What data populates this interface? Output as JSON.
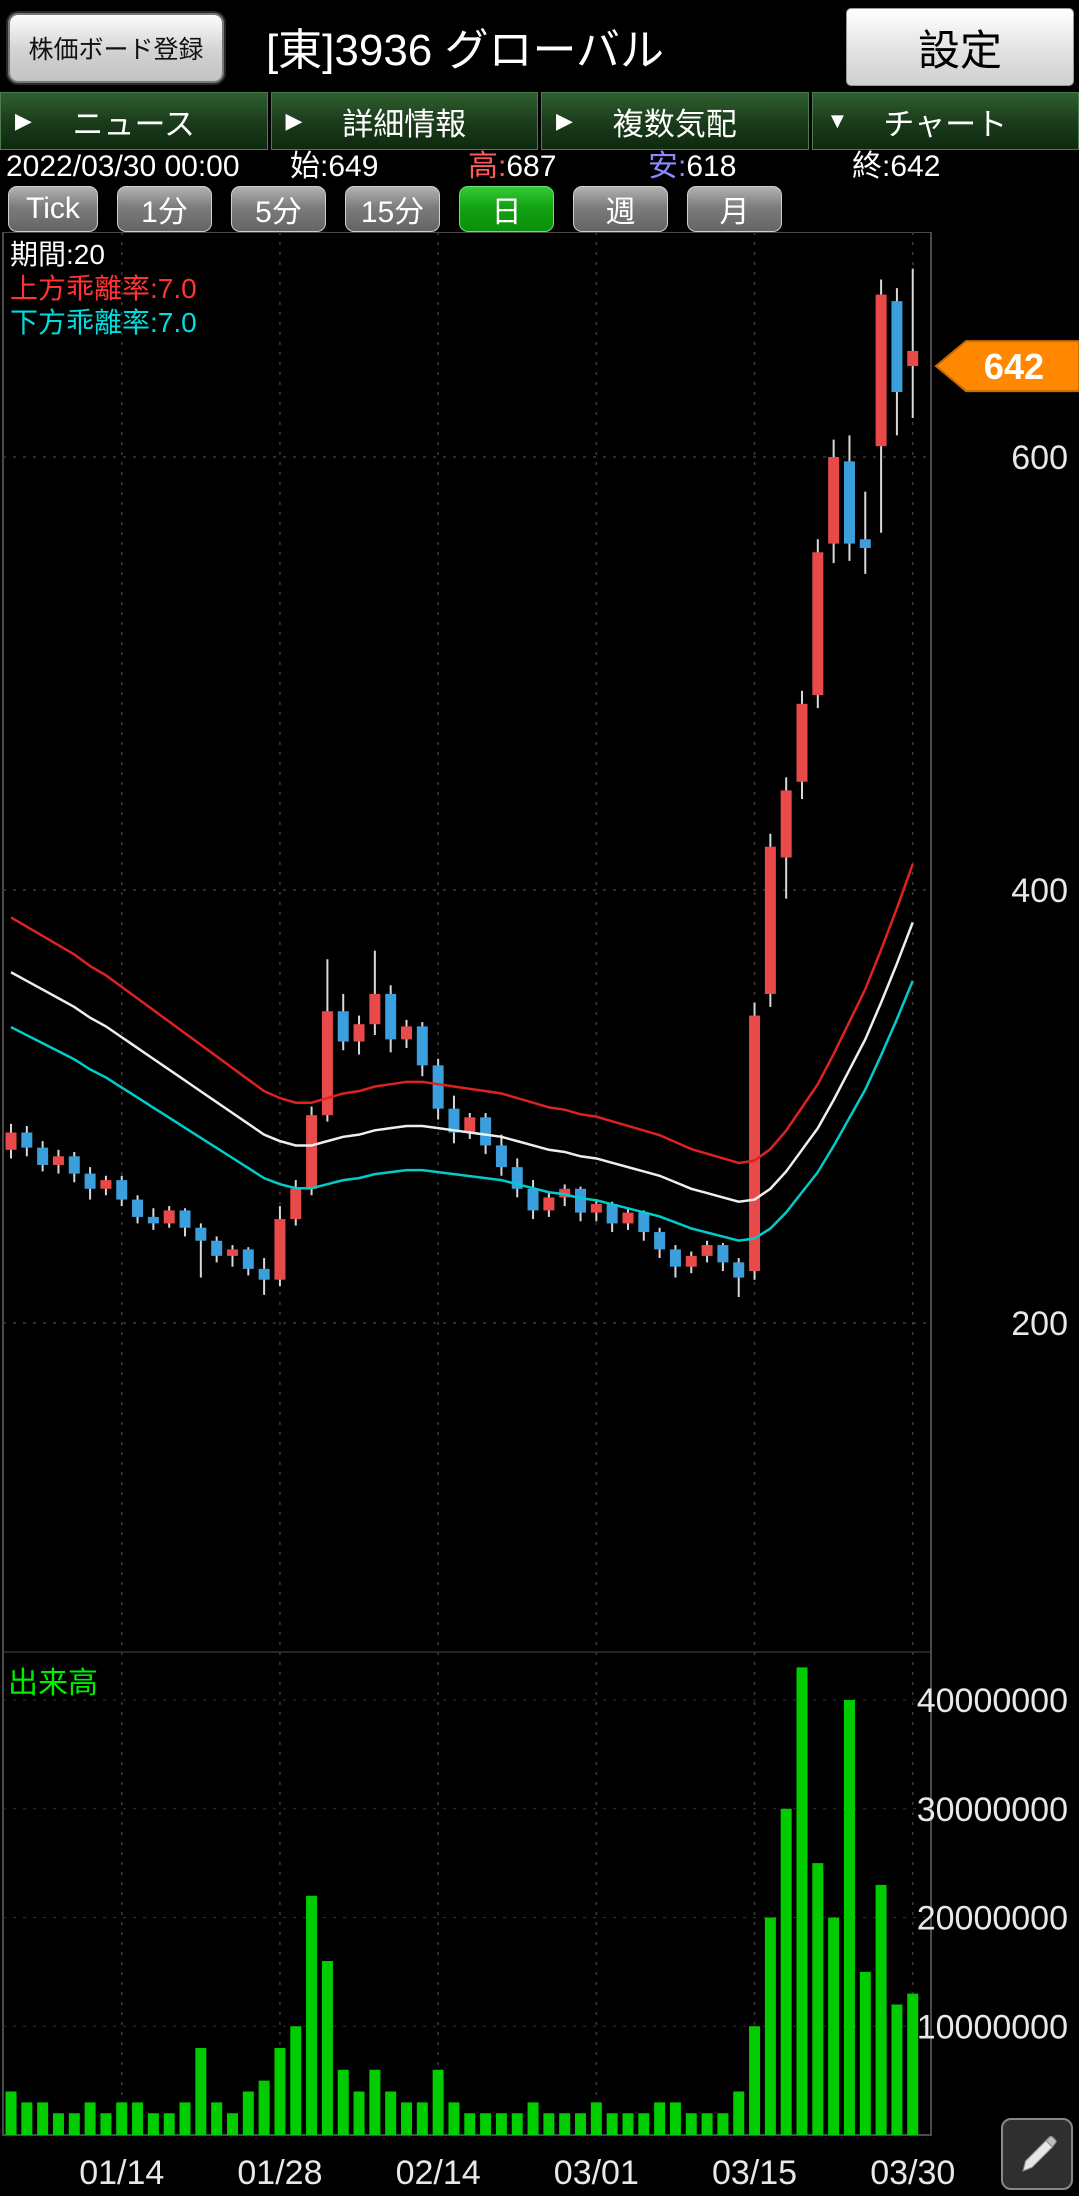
{
  "header": {
    "board_register_label": "株価ボード登録",
    "title": "[東]3936 グローバル",
    "settings_label": "設定"
  },
  "tabs": [
    {
      "label": "ニュース",
      "arrow_glyph": "▶"
    },
    {
      "label": "詳細情報",
      "arrow_glyph": "▶"
    },
    {
      "label": "複数気配",
      "arrow_glyph": "▶"
    },
    {
      "label": "チャート",
      "arrow_glyph": "▼"
    }
  ],
  "quote_bar": {
    "datetime": "2022/03/30 00:00",
    "open_label": "始:",
    "open_value": "649",
    "high_label": "高:",
    "high_value": "687",
    "low_label": "安:",
    "low_value": "618",
    "close_label": "終:",
    "close_value": "642"
  },
  "timeframes": {
    "options": [
      "Tick",
      "1分",
      "5分",
      "15分",
      "日",
      "週",
      "月"
    ],
    "selected": "日"
  },
  "chart_overlays": {
    "period_label": "期間:20",
    "upper_dev_label": "上方乖離率:7.0",
    "lower_dev_label": "下方乖離率:7.0",
    "volume_label": "出来高"
  },
  "colors": {
    "up_candle": "#e84a4a",
    "down_candle": "#3b9fdd",
    "ma_upper": "#dd2222",
    "ma_middle": "#eeeeee",
    "ma_lower": "#00cccc",
    "volume_bar": "#00cc00",
    "current_price_tag": "#ff8800",
    "grid": "#3c3c3c",
    "axis_text": "#e8e8e8"
  },
  "chart_data": {
    "type": "candlestick",
    "symbol": "[東]3936 グローバル",
    "interval": "日",
    "title": "",
    "ma": {
      "period": 20,
      "upper_envelope_pct": 7.0,
      "lower_envelope_pct": 7.0
    },
    "color_rule": "close_vs_prev_close",
    "current_price": 642,
    "price_axis_ticks": [
      600,
      400,
      200
    ],
    "volume_axis_ticks": [
      40000000,
      30000000,
      20000000,
      10000000
    ],
    "x_axis_labels": [
      "01/14",
      "01/28",
      "02/14",
      "03/01",
      "03/15",
      "03/30"
    ],
    "candle_fields": [
      "date",
      "open",
      "high",
      "low",
      "close",
      "volume"
    ],
    "candles": [
      [
        "01/04",
        280,
        292,
        276,
        288,
        4000000
      ],
      [
        "01/05",
        288,
        291,
        277,
        281,
        3000000
      ],
      [
        "01/06",
        281,
        284,
        270,
        273,
        3000000
      ],
      [
        "01/07",
        273,
        280,
        269,
        277,
        2000000
      ],
      [
        "01/11",
        277,
        279,
        265,
        269,
        2000000
      ],
      [
        "01/12",
        269,
        272,
        257,
        262,
        3000000
      ],
      [
        "01/13",
        262,
        268,
        259,
        266,
        2000000
      ],
      [
        "01/14",
        266,
        268,
        254,
        257,
        3000000
      ],
      [
        "01/17",
        257,
        259,
        246,
        249,
        3000000
      ],
      [
        "01/18",
        249,
        253,
        243,
        246,
        2000000
      ],
      [
        "01/19",
        246,
        254,
        244,
        252,
        2000000
      ],
      [
        "01/20",
        252,
        253,
        240,
        244,
        3000000
      ],
      [
        "01/21",
        244,
        246,
        221,
        238,
        8000000
      ],
      [
        "01/24",
        238,
        240,
        228,
        231,
        3000000
      ],
      [
        "01/25",
        231,
        236,
        226,
        234,
        2000000
      ],
      [
        "01/26",
        234,
        235,
        222,
        225,
        4000000
      ],
      [
        "01/27",
        225,
        230,
        213,
        220,
        5000000
      ],
      [
        "01/28",
        220,
        254,
        217,
        248,
        8000000
      ],
      [
        "01/31",
        248,
        266,
        245,
        262,
        10000000
      ],
      [
        "02/01",
        262,
        300,
        259,
        296,
        22000000
      ],
      [
        "02/02",
        296,
        368,
        293,
        344,
        16000000
      ],
      [
        "02/03",
        344,
        352,
        326,
        330,
        6000000
      ],
      [
        "02/04",
        330,
        342,
        324,
        338,
        4000000
      ],
      [
        "02/07",
        338,
        372,
        333,
        352,
        6000000
      ],
      [
        "02/08",
        352,
        356,
        325,
        331,
        4000000
      ],
      [
        "02/09",
        331,
        340,
        327,
        337,
        3000000
      ],
      [
        "02/10",
        337,
        339,
        314,
        319,
        3000000
      ],
      [
        "02/14",
        319,
        322,
        294,
        299,
        6000000
      ],
      [
        "02/15",
        299,
        305,
        283,
        288,
        3000000
      ],
      [
        "02/16",
        288,
        297,
        285,
        295,
        2000000
      ],
      [
        "02/17",
        295,
        297,
        278,
        282,
        2000000
      ],
      [
        "02/18",
        282,
        287,
        268,
        272,
        2000000
      ],
      [
        "02/21",
        272,
        276,
        258,
        262,
        2000000
      ],
      [
        "02/22",
        262,
        266,
        248,
        252,
        3000000
      ],
      [
        "02/24",
        252,
        260,
        249,
        258,
        2000000
      ],
      [
        "02/25",
        258,
        264,
        254,
        262,
        2000000
      ],
      [
        "02/28",
        262,
        263,
        247,
        251,
        2000000
      ],
      [
        "03/01",
        251,
        257,
        247,
        255,
        3000000
      ],
      [
        "03/02",
        255,
        256,
        242,
        246,
        2000000
      ],
      [
        "03/03",
        246,
        253,
        243,
        251,
        2000000
      ],
      [
        "03/04",
        251,
        252,
        238,
        242,
        2000000
      ],
      [
        "03/07",
        242,
        244,
        230,
        234,
        3000000
      ],
      [
        "03/08",
        234,
        236,
        221,
        226,
        3000000
      ],
      [
        "03/09",
        226,
        233,
        223,
        231,
        2000000
      ],
      [
        "03/10",
        231,
        238,
        228,
        236,
        2000000
      ],
      [
        "03/11",
        236,
        237,
        224,
        228,
        2000000
      ],
      [
        "03/14",
        228,
        230,
        212,
        221,
        4000000
      ],
      [
        "03/15",
        224,
        348,
        220,
        342,
        10000000
      ],
      [
        "03/16",
        352,
        426,
        346,
        420,
        20000000
      ],
      [
        "03/17",
        415,
        452,
        396,
        446,
        30000000
      ],
      [
        "03/18",
        450,
        492,
        442,
        486,
        43000000
      ],
      [
        "03/22",
        490,
        562,
        484,
        556,
        25000000
      ],
      [
        "03/23",
        560,
        608,
        551,
        600,
        20000000
      ],
      [
        "03/24",
        598,
        610,
        552,
        560,
        40000000
      ],
      [
        "03/25",
        562,
        584,
        546,
        558,
        15000000
      ],
      [
        "03/28",
        605,
        682,
        565,
        675,
        23000000
      ],
      [
        "03/29",
        672,
        678,
        610,
        630,
        12000000
      ],
      [
        "03/30",
        649,
        687,
        618,
        642,
        13000000
      ]
    ],
    "ma20": [
      362,
      358,
      354,
      350,
      346,
      341,
      337,
      332,
      327,
      322,
      317,
      312,
      307,
      302,
      297,
      292,
      287,
      284,
      282,
      282,
      284,
      286,
      287,
      289,
      290,
      291,
      291,
      290,
      289,
      288,
      287,
      286,
      284,
      282,
      280,
      279,
      277,
      276,
      274,
      272,
      270,
      268,
      265,
      262,
      260,
      258,
      256,
      257,
      262,
      270,
      280,
      290,
      303,
      317,
      331,
      348,
      366,
      385
    ]
  }
}
